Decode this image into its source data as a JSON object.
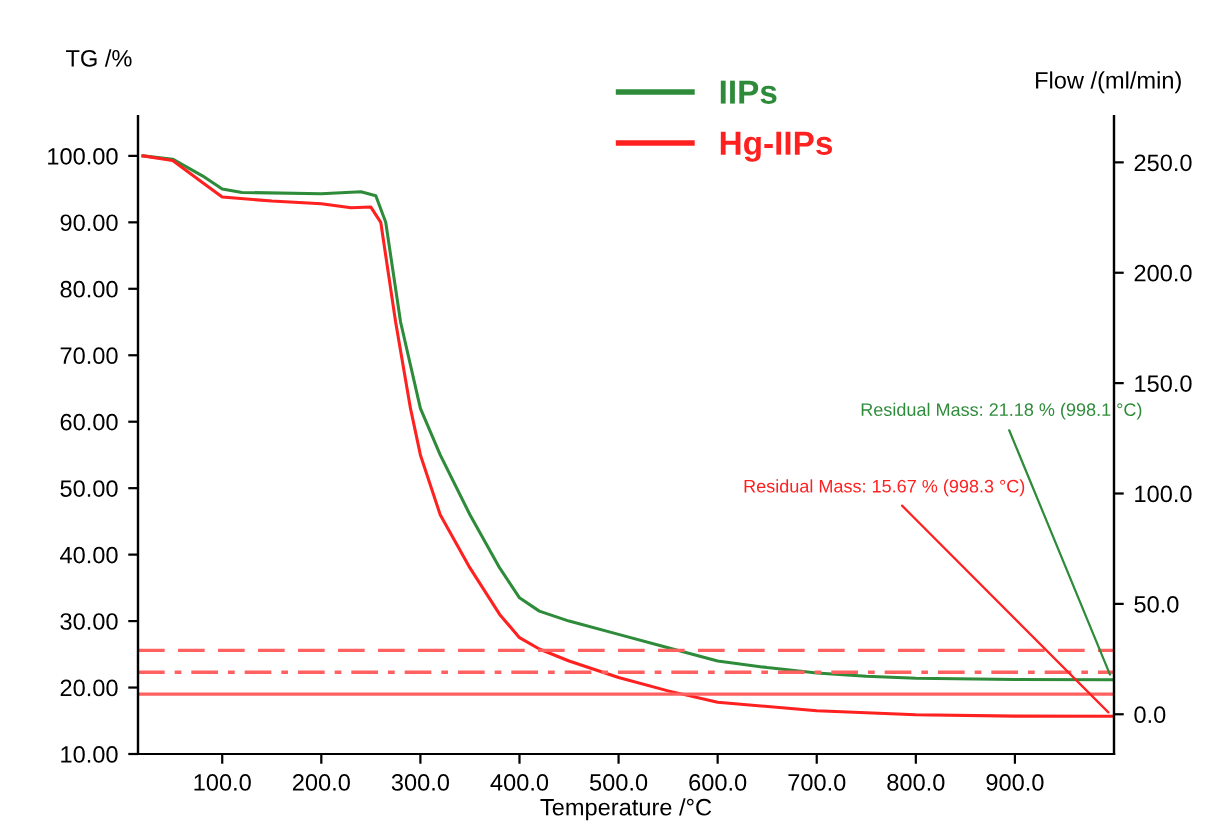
{
  "chart_data": {
    "type": "line",
    "xlabel": "Temperature /°C",
    "ylabel": "TG /%",
    "y2label": "Flow /(ml/min)",
    "xlim": [
      15,
      1000
    ],
    "xticks": [
      {
        "value": 100,
        "label": "100.0"
      },
      {
        "value": 200,
        "label": "200.0"
      },
      {
        "value": 300,
        "label": "300.0"
      },
      {
        "value": 400,
        "label": "400.0"
      },
      {
        "value": 500,
        "label": "500.0"
      },
      {
        "value": 600,
        "label": "600.0"
      },
      {
        "value": 700,
        "label": "700.0"
      },
      {
        "value": 800,
        "label": "800.0"
      },
      {
        "value": 900,
        "label": "900.0"
      }
    ],
    "ylim": [
      10,
      106
    ],
    "yticks": [
      {
        "value": 10,
        "label": "10.00"
      },
      {
        "value": 20,
        "label": "20.00"
      },
      {
        "value": 30,
        "label": "30.00"
      },
      {
        "value": 40,
        "label": "40.00"
      },
      {
        "value": 50,
        "label": "50.00"
      },
      {
        "value": 60,
        "label": "60.00"
      },
      {
        "value": 70,
        "label": "70.00"
      },
      {
        "value": 80,
        "label": "80.00"
      },
      {
        "value": 90,
        "label": "90.00"
      },
      {
        "value": 100,
        "label": "100.00"
      }
    ],
    "y2lim": [
      -18,
      271
    ],
    "y2ticks": [
      {
        "value": 0,
        "label": "0.0"
      },
      {
        "value": 50,
        "label": "50.0"
      },
      {
        "value": 100,
        "label": "100.0"
      },
      {
        "value": 150,
        "label": "150.0"
      },
      {
        "value": 200,
        "label": "200.0"
      },
      {
        "value": 250,
        "label": "250.0"
      }
    ],
    "series": [
      {
        "name": "IIPs",
        "color": "#2e8b3a",
        "x": [
          20,
          50,
          80,
          100,
          120,
          200,
          240,
          255,
          265,
          280,
          300,
          320,
          350,
          380,
          400,
          420,
          450,
          500,
          550,
          600,
          650,
          700,
          750,
          800,
          900,
          998.1
        ],
        "values": [
          100,
          99.5,
          97,
          95,
          94.5,
          94.3,
          94.6,
          94,
          90,
          75,
          62,
          55,
          46,
          38,
          33.5,
          31.5,
          30,
          28,
          26,
          24,
          23,
          22.2,
          21.7,
          21.4,
          21.2,
          21.18
        ]
      },
      {
        "name": "Hg-IIPs",
        "color": "#ff2020",
        "x": [
          20,
          50,
          80,
          100,
          150,
          200,
          230,
          250,
          260,
          275,
          290,
          300,
          320,
          350,
          380,
          400,
          420,
          450,
          500,
          550,
          600,
          700,
          800,
          900,
          998.3
        ],
        "values": [
          100,
          99.3,
          96,
          93.8,
          93.2,
          92.8,
          92.2,
          92.3,
          90,
          75,
          62,
          55,
          46,
          38,
          31,
          27.5,
          25.8,
          24,
          21.5,
          19.5,
          17.8,
          16.5,
          15.9,
          15.7,
          15.67
        ]
      }
    ],
    "ref_lines": [
      {
        "axis": "y",
        "value": 25.6,
        "color": "#ff6060",
        "line_style": "dashed"
      },
      {
        "axis": "y",
        "value": 22.3,
        "color": "#ff6060",
        "line_style": "dashdot"
      },
      {
        "axis": "y",
        "value": 19.0,
        "color": "#ff6060",
        "line_style": "solid"
      }
    ],
    "annotations": [
      {
        "text": "Residual Mass: 21.18 % (998.1 °C)",
        "x": 998.1,
        "y": 21.18
      },
      {
        "text": "Residual Mass: 15.67 % (998.3 °C)",
        "x": 998.3,
        "y": 15.67
      }
    ],
    "legend": "top",
    "grid": false,
    "marker": "none",
    "line_style": "solid"
  }
}
